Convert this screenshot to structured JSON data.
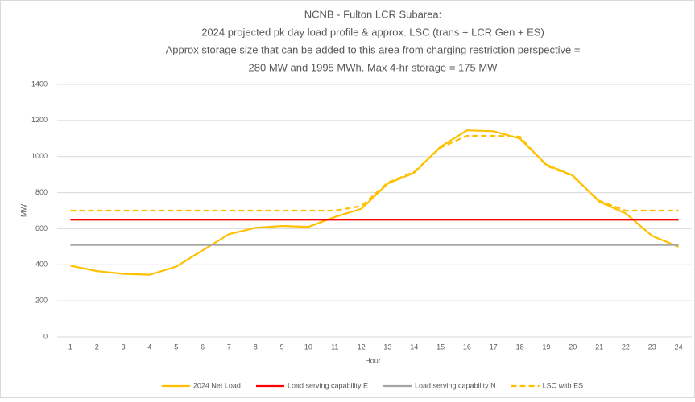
{
  "chart_data": {
    "type": "line",
    "title": [
      "NCNB - Fulton LCR Subarea:",
      "2024 projected pk day load profile & approx. LSC (trans + LCR Gen + ES)",
      "Approx storage size that can be added to this area from charging restriction perspective =",
      "280 MW and 1995 MWh. Max 4-hr storage = 175 MW"
    ],
    "x_label": "Hour",
    "y_label": "MW",
    "categories": [
      1,
      2,
      3,
      4,
      5,
      6,
      7,
      8,
      9,
      10,
      11,
      12,
      13,
      14,
      15,
      16,
      17,
      18,
      19,
      20,
      21,
      22,
      23,
      24
    ],
    "series": [
      {
        "name": "2024 Net Load",
        "color": "#ffc000",
        "dash": false,
        "values": [
          395,
          365,
          350,
          345,
          390,
          480,
          570,
          605,
          615,
          610,
          665,
          710,
          850,
          910,
          1055,
          1145,
          1140,
          1100,
          955,
          895,
          750,
          685,
          560,
          500
        ]
      },
      {
        "name": "Load serving capability E",
        "color": "#ff0000",
        "dash": false,
        "values": [
          650,
          650,
          650,
          650,
          650,
          650,
          650,
          650,
          650,
          650,
          650,
          650,
          650,
          650,
          650,
          650,
          650,
          650,
          650,
          650,
          650,
          650,
          650,
          650
        ]
      },
      {
        "name": "Load serving capability N",
        "color": "#a5a5a5",
        "dash": false,
        "values": [
          510,
          510,
          510,
          510,
          510,
          510,
          510,
          510,
          510,
          510,
          510,
          510,
          510,
          510,
          510,
          510,
          510,
          510,
          510,
          510,
          510,
          510,
          510,
          510
        ]
      },
      {
        "name": "LSC with ES",
        "color": "#ffc000",
        "dash": true,
        "values": [
          700,
          700,
          700,
          700,
          700,
          700,
          700,
          700,
          700,
          700,
          700,
          725,
          855,
          915,
          1050,
          1115,
          1115,
          1110,
          950,
          890,
          755,
          700,
          700,
          700
        ]
      }
    ],
    "ylim": [
      0,
      1400
    ],
    "yticks": [
      0,
      200,
      400,
      600,
      800,
      1000,
      1200,
      1400
    ],
    "grid": true,
    "legend": "bottom"
  }
}
